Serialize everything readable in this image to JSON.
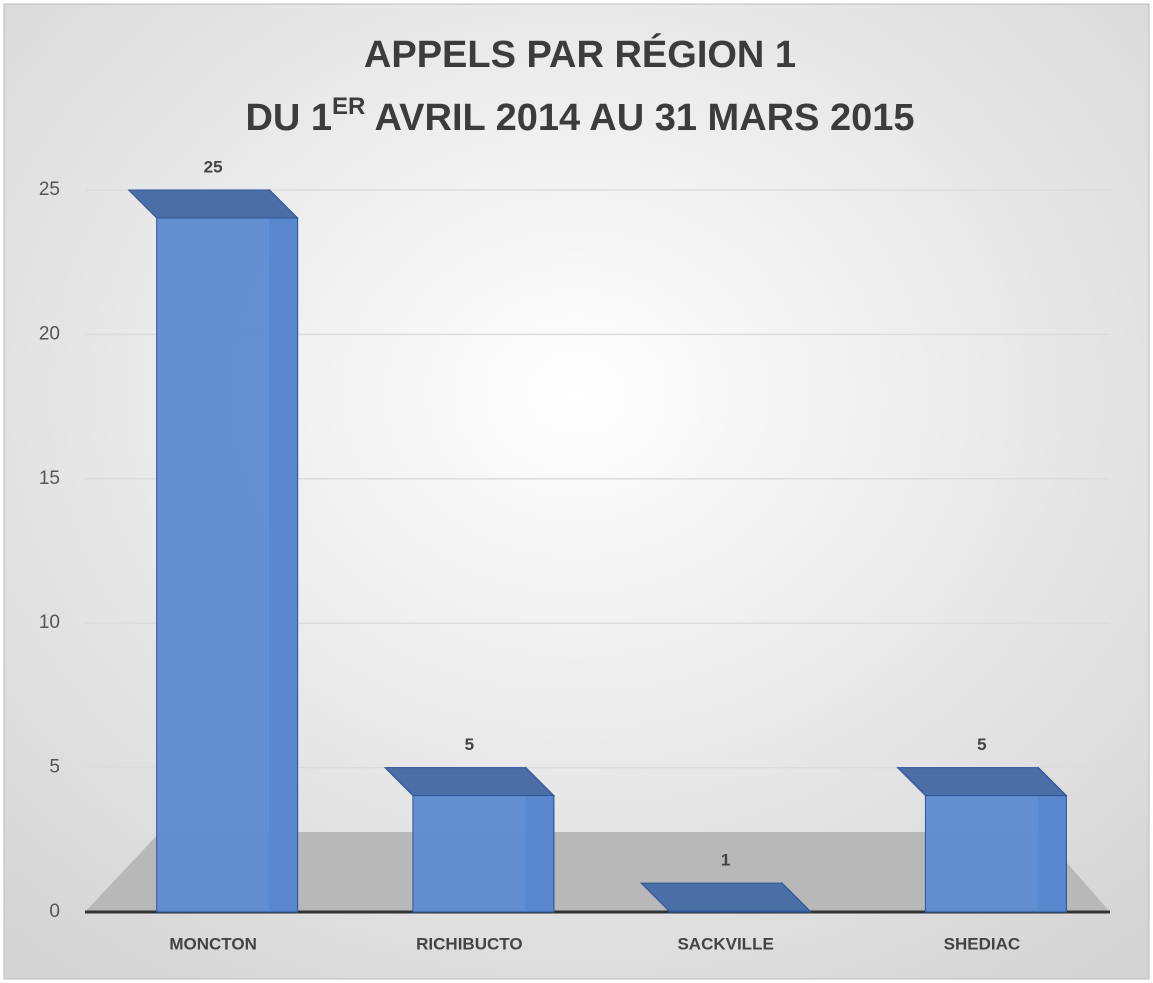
{
  "chart_data": {
    "type": "bar",
    "title": "APPELS PAR RÉGION 1",
    "subtitle": {
      "before": "DU 1",
      "sup": "ER",
      "after": " AVRIL 2014 AU 31 MARS 2015"
    },
    "categories": [
      "MONCTON",
      "RICHIBUCTO",
      "SACKVILLE",
      "SHEDIAC"
    ],
    "values": [
      25,
      5,
      1,
      5
    ],
    "color": "#5b8bd0",
    "ylim": [
      0,
      25
    ],
    "yticks": [
      0,
      5,
      10,
      15,
      20,
      25
    ],
    "grid": true
  }
}
